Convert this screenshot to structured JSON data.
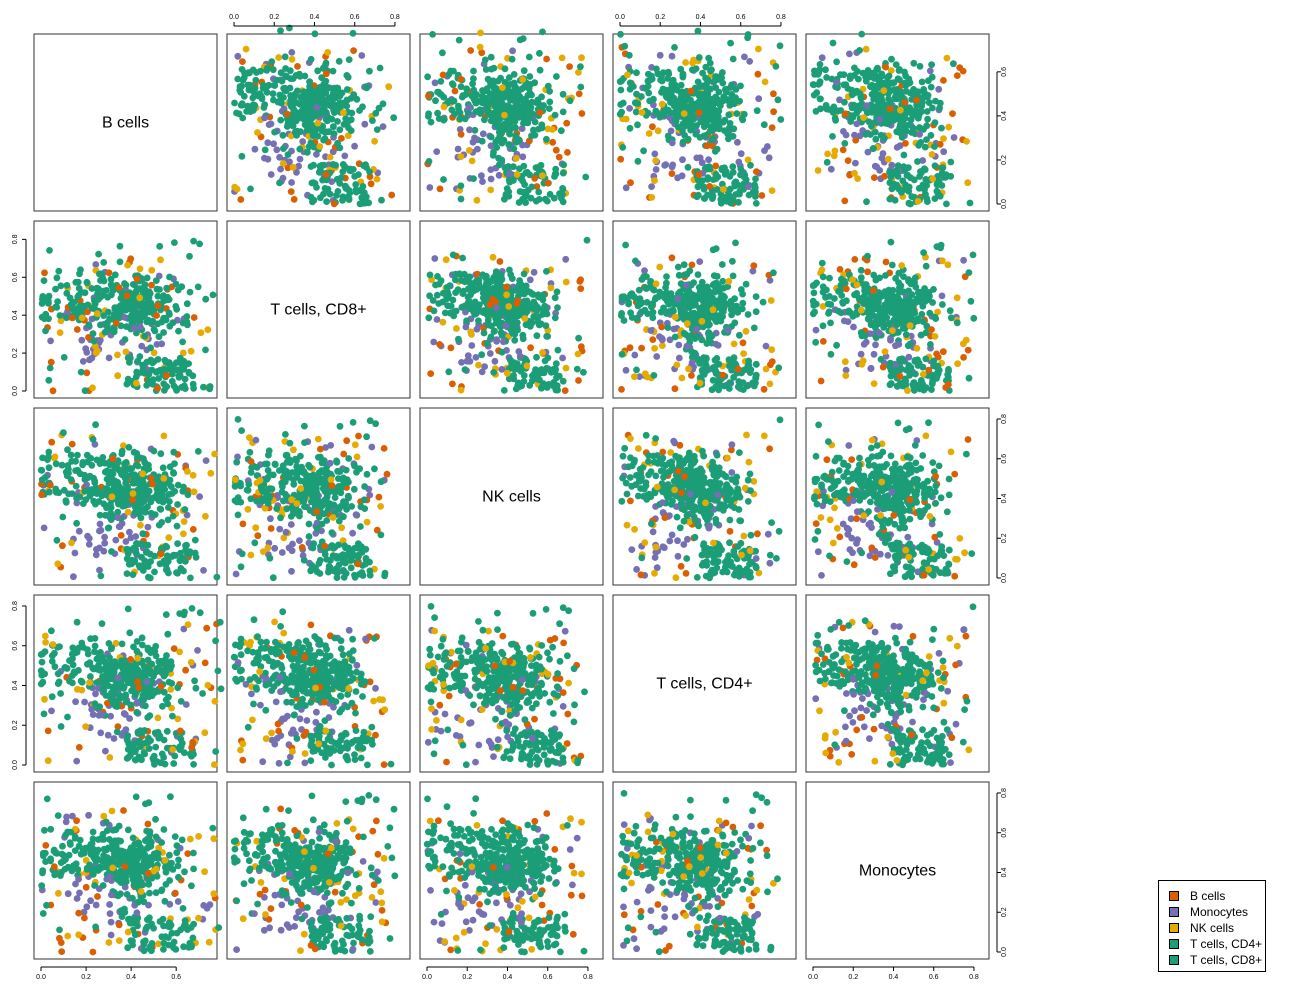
{
  "chart_data": {
    "type": "scatter",
    "variables": [
      "B cells",
      "T cells, CD8+",
      "NK cells",
      "T cells, CD4+",
      "Monocytes"
    ],
    "column_axis_ranges": [
      [
        0,
        0.75
      ],
      [
        0,
        0.84
      ],
      [
        0,
        0.84
      ],
      [
        0,
        0.84
      ],
      [
        0,
        0.84
      ]
    ],
    "row_axis_ranges": [
      [
        0,
        0.74
      ],
      [
        0,
        0.86
      ],
      [
        0,
        0.82
      ],
      [
        0,
        0.82
      ],
      [
        0,
        0.82
      ]
    ],
    "axis_ticks": {
      "col_B": [
        "0.0",
        "0.2",
        "0.4",
        "0.6"
      ],
      "col_other": [
        "0.0",
        "0.2",
        "0.4",
        "0.6",
        "0.8"
      ],
      "row_B": [
        "0.0",
        "0.2",
        "0.4",
        "0.6"
      ],
      "row_other": [
        "0.0",
        "0.2",
        "0.4",
        "0.6",
        "0.8"
      ]
    },
    "series": [
      {
        "name": "B cells",
        "color": "#d95f02",
        "points_per_panel": 25
      },
      {
        "name": "Monocytes",
        "color": "#7570b3",
        "points_per_panel": 55
      },
      {
        "name": "NK cells",
        "color": "#e6ab02",
        "points_per_panel": 30
      },
      {
        "name": "T cells, CD4+",
        "color": "#1b9e77",
        "points_per_panel": 260
      },
      {
        "name": "T cells, CD8+",
        "color": "#1b9e77",
        "points_per_panel": 140
      }
    ],
    "legend_position": "bottom-right",
    "grid": false
  },
  "legend": {
    "items": [
      {
        "label": "B cells",
        "color": "#d95f02"
      },
      {
        "label": "Monocytes",
        "color": "#7570b3"
      },
      {
        "label": "NK cells",
        "color": "#e6ab02"
      },
      {
        "label": "T cells, CD4+",
        "color": "#1b9e77"
      },
      {
        "label": "T cells, CD8+",
        "color": "#1b9e77"
      }
    ]
  }
}
